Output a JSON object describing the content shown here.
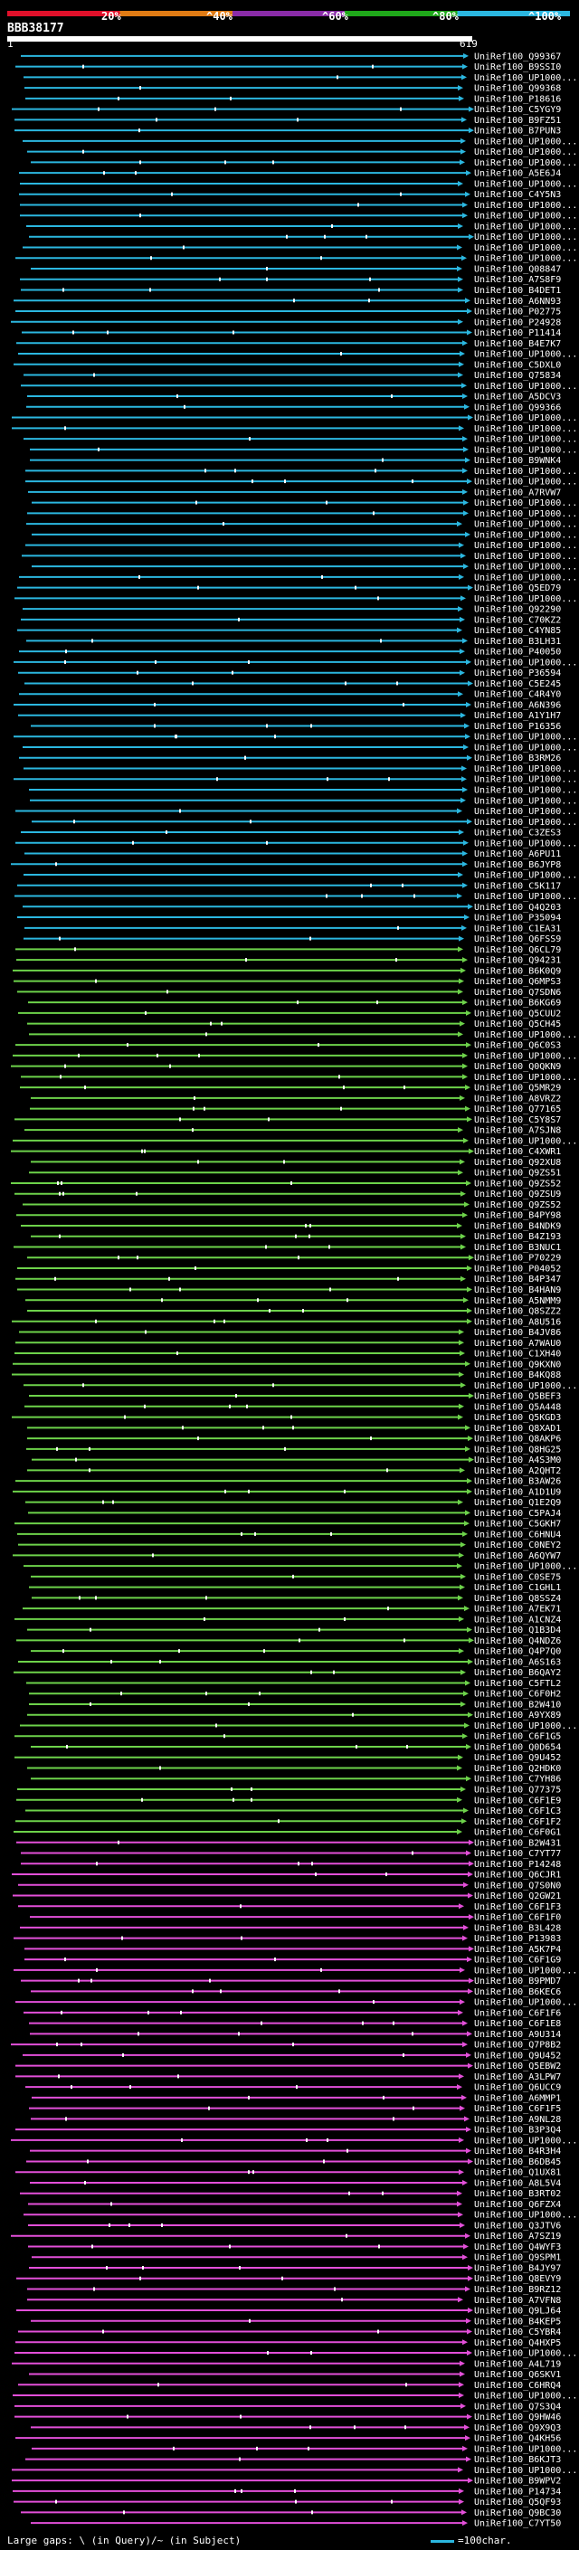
{
  "legend": {
    "labels": [
      "20%",
      "^40%",
      "^60%",
      "^80%",
      "^100%"
    ],
    "colors": [
      "#e0102a",
      "#e07b14",
      "#8a2ca8",
      "#1fa81a",
      "#2bb7e0"
    ]
  },
  "query": {
    "id": "BBB38177",
    "start": "1",
    "end": "619"
  },
  "hit_colors": {
    "cyan": "#2bb7e0",
    "green": "#6dd24a",
    "magenta": "#e34fd9",
    "purple": "#8a2ca8"
  },
  "hits": [
    {
      "label": "UniRef100_Q99367",
      "c": "cyan"
    },
    {
      "label": "UniRef100_B9SSI0",
      "c": "cyan"
    },
    {
      "label": "UniRef100_UP1000...",
      "c": "cyan"
    },
    {
      "label": "UniRef100_Q99368",
      "c": "cyan"
    },
    {
      "label": "UniRef100_P18616",
      "c": "cyan"
    },
    {
      "label": "UniRef100_C5YGY9",
      "c": "cyan"
    },
    {
      "label": "UniRef100_B9FZ51",
      "c": "cyan"
    },
    {
      "label": "UniRef100_B7PUN3",
      "c": "cyan"
    },
    {
      "label": "UniRef100_UP1000...",
      "c": "cyan"
    },
    {
      "label": "UniRef100_UP1000...",
      "c": "cyan"
    },
    {
      "label": "UniRef100_UP1000...",
      "c": "cyan"
    },
    {
      "label": "UniRef100_A5E6J4",
      "c": "cyan"
    },
    {
      "label": "UniRef100_UP1000...",
      "c": "cyan"
    },
    {
      "label": "UniRef100_C4Y5N3",
      "c": "cyan"
    },
    {
      "label": "UniRef100_UP1000...",
      "c": "cyan"
    },
    {
      "label": "UniRef100_UP1000...",
      "c": "cyan"
    },
    {
      "label": "UniRef100_UP1000...",
      "c": "cyan"
    },
    {
      "label": "UniRef100_UP1000...",
      "c": "cyan"
    },
    {
      "label": "UniRef100_UP1000...",
      "c": "cyan"
    },
    {
      "label": "UniRef100_UP1000...",
      "c": "cyan"
    },
    {
      "label": "UniRef100_Q08847",
      "c": "cyan"
    },
    {
      "label": "UniRef100_A7S8F9",
      "c": "cyan"
    },
    {
      "label": "UniRef100_B4DET1",
      "c": "cyan"
    },
    {
      "label": "UniRef100_A6NN93",
      "c": "cyan"
    },
    {
      "label": "UniRef100_P02775",
      "c": "cyan"
    },
    {
      "label": "UniRef100_P24928",
      "c": "cyan"
    },
    {
      "label": "UniRef100_P11414",
      "c": "cyan"
    },
    {
      "label": "UniRef100_B4E7K7",
      "c": "cyan"
    },
    {
      "label": "UniRef100_UP1000...",
      "c": "cyan"
    },
    {
      "label": "UniRef100_C5DXL0",
      "c": "cyan"
    },
    {
      "label": "UniRef100_Q75834",
      "c": "cyan"
    },
    {
      "label": "UniRef100_UP1000...",
      "c": "cyan"
    },
    {
      "label": "UniRef100_A5DCV3",
      "c": "cyan"
    },
    {
      "label": "UniRef100_Q99366",
      "c": "cyan"
    },
    {
      "label": "UniRef100_UP1000...",
      "c": "cyan"
    },
    {
      "label": "UniRef100_UP1000...",
      "c": "cyan"
    },
    {
      "label": "UniRef100_UP1000...",
      "c": "cyan"
    },
    {
      "label": "UniRef100_UP1000...",
      "c": "cyan"
    },
    {
      "label": "UniRef100_B9WNK4",
      "c": "cyan"
    },
    {
      "label": "UniRef100_UP1000...",
      "c": "cyan"
    },
    {
      "label": "UniRef100_UP1000...",
      "c": "cyan"
    },
    {
      "label": "UniRef100_A7RVW7",
      "c": "cyan"
    },
    {
      "label": "UniRef100_UP1000...",
      "c": "cyan"
    },
    {
      "label": "UniRef100_UP1000...",
      "c": "cyan"
    },
    {
      "label": "UniRef100_UP1000...",
      "c": "cyan"
    },
    {
      "label": "UniRef100_UP1000...",
      "c": "cyan"
    },
    {
      "label": "UniRef100_UP1000...",
      "c": "cyan"
    },
    {
      "label": "UniRef100_UP1000...",
      "c": "cyan"
    },
    {
      "label": "UniRef100_UP1000...",
      "c": "cyan"
    },
    {
      "label": "UniRef100_UP1000...",
      "c": "cyan"
    },
    {
      "label": "UniRef100_Q5ED79",
      "c": "cyan"
    },
    {
      "label": "UniRef100_UP1000...",
      "c": "cyan"
    },
    {
      "label": "UniRef100_Q92290",
      "c": "cyan"
    },
    {
      "label": "UniRef100_C70KZ2",
      "c": "cyan"
    },
    {
      "label": "UniRef100_C4YN85",
      "c": "cyan"
    },
    {
      "label": "UniRef100_B3LH31",
      "c": "cyan"
    },
    {
      "label": "UniRef100_P40050",
      "c": "cyan"
    },
    {
      "label": "UniRef100_UP1000...",
      "c": "cyan"
    },
    {
      "label": "UniRef100_P36594",
      "c": "cyan"
    },
    {
      "label": "UniRef100_C5E245",
      "c": "cyan"
    },
    {
      "label": "UniRef100_C4R4Y0",
      "c": "cyan"
    },
    {
      "label": "UniRef100_A6N396",
      "c": "cyan"
    },
    {
      "label": "UniRef100_A1Y1H7",
      "c": "cyan"
    },
    {
      "label": "UniRef100_P16356",
      "c": "cyan"
    },
    {
      "label": "UniRef100_UP1000...",
      "c": "cyan"
    },
    {
      "label": "UniRef100_UP1000...",
      "c": "cyan"
    },
    {
      "label": "UniRef100_B3RM26",
      "c": "cyan"
    },
    {
      "label": "UniRef100_UP1000...",
      "c": "cyan"
    },
    {
      "label": "UniRef100_UP1000...",
      "c": "cyan"
    },
    {
      "label": "UniRef100_UP1000...",
      "c": "cyan"
    },
    {
      "label": "UniRef100_UP1000...",
      "c": "cyan"
    },
    {
      "label": "UniRef100_UP1000...",
      "c": "cyan"
    },
    {
      "label": "UniRef100_UP1000...",
      "c": "cyan"
    },
    {
      "label": "UniRef100_C3ZES3",
      "c": "cyan"
    },
    {
      "label": "UniRef100_UP1000...",
      "c": "cyan"
    },
    {
      "label": "UniRef100_A6PU11",
      "c": "cyan"
    },
    {
      "label": "UniRef100_B6JYP8",
      "c": "cyan"
    },
    {
      "label": "UniRef100_UP1000...",
      "c": "cyan"
    },
    {
      "label": "UniRef100_C5K117",
      "c": "cyan"
    },
    {
      "label": "UniRef100_UP1000...",
      "c": "cyan"
    },
    {
      "label": "UniRef100_Q4Q203",
      "c": "cyan"
    },
    {
      "label": "UniRef100_P35094",
      "c": "cyan"
    },
    {
      "label": "UniRef100_C1EA31",
      "c": "cyan"
    },
    {
      "label": "UniRef100_Q6FSS9",
      "c": "cyan"
    },
    {
      "label": "UniRef100_Q6CL79",
      "c": "green"
    },
    {
      "label": "UniRef100_Q94231",
      "c": "green"
    },
    {
      "label": "UniRef100_B6K0Q9",
      "c": "green"
    },
    {
      "label": "UniRef100_Q6MPS3",
      "c": "green"
    },
    {
      "label": "UniRef100_Q7SDN6",
      "c": "green"
    },
    {
      "label": "UniRef100_B6KG69",
      "c": "green"
    },
    {
      "label": "UniRef100_Q5CUU2",
      "c": "green"
    },
    {
      "label": "UniRef100_Q5CH45",
      "c": "green"
    },
    {
      "label": "UniRef100_UP1000...",
      "c": "green"
    },
    {
      "label": "UniRef100_Q6C0S3",
      "c": "green"
    },
    {
      "label": "UniRef100_UP1000...",
      "c": "green"
    },
    {
      "label": "UniRef100_Q0QKN9",
      "c": "green"
    },
    {
      "label": "UniRef100_UP1000...",
      "c": "green"
    },
    {
      "label": "UniRef100_Q5MR29",
      "c": "green"
    },
    {
      "label": "UniRef100_A8VRZ2",
      "c": "green"
    },
    {
      "label": "UniRef100_Q77165",
      "c": "green"
    },
    {
      "label": "UniRef100_C5Y8S7",
      "c": "green"
    },
    {
      "label": "UniRef100_A7SJN8",
      "c": "green"
    },
    {
      "label": "UniRef100_UP1000...",
      "c": "green"
    },
    {
      "label": "UniRef100_C4XWR1",
      "c": "green"
    },
    {
      "label": "UniRef100_Q92XU8",
      "c": "green"
    },
    {
      "label": "UniRef100_Q9ZS51",
      "c": "green"
    },
    {
      "label": "UniRef100_Q9ZS52",
      "c": "green"
    },
    {
      "label": "UniRef100_Q9ZSU9",
      "c": "green"
    },
    {
      "label": "UniRef100_Q9ZS52",
      "c": "green"
    },
    {
      "label": "UniRef100_B4PY98",
      "c": "green"
    },
    {
      "label": "UniRef100_B4NDK9",
      "c": "green"
    },
    {
      "label": "UniRef100_B4Z193",
      "c": "green"
    },
    {
      "label": "UniRef100_B3NUC1",
      "c": "green"
    },
    {
      "label": "UniRef100_P70229",
      "c": "green"
    },
    {
      "label": "UniRef100_P04052",
      "c": "green"
    },
    {
      "label": "UniRef100_B4P347",
      "c": "green"
    },
    {
      "label": "UniRef100_B4HAN9",
      "c": "green"
    },
    {
      "label": "UniRef100_A5NMM9",
      "c": "green"
    },
    {
      "label": "UniRef100_Q8SZZ2",
      "c": "green"
    },
    {
      "label": "UniRef100_A8U516",
      "c": "green"
    },
    {
      "label": "UniRef100_B4JV86",
      "c": "green"
    },
    {
      "label": "UniRef100_A7WAU0",
      "c": "green"
    },
    {
      "label": "UniRef100_C1XH40",
      "c": "green"
    },
    {
      "label": "UniRef100_Q9KXN0",
      "c": "green"
    },
    {
      "label": "UniRef100_B4KQ88",
      "c": "green"
    },
    {
      "label": "UniRef100_UP1000...",
      "c": "green"
    },
    {
      "label": "UniRef100_Q5BEF3",
      "c": "green"
    },
    {
      "label": "UniRef100_Q5A448",
      "c": "green"
    },
    {
      "label": "UniRef100_Q5KGD3",
      "c": "green"
    },
    {
      "label": "UniRef100_Q8XAD1",
      "c": "green"
    },
    {
      "label": "UniRef100_Q8AKP6",
      "c": "green"
    },
    {
      "label": "UniRef100_Q8HG25",
      "c": "green"
    },
    {
      "label": "UniRef100_A4S3M0",
      "c": "green"
    },
    {
      "label": "UniRef100_A2QHT2",
      "c": "green"
    },
    {
      "label": "UniRef100_B3AW26",
      "c": "green"
    },
    {
      "label": "UniRef100_A1D1U9",
      "c": "green"
    },
    {
      "label": "UniRef100_Q1E2Q9",
      "c": "green"
    },
    {
      "label": "UniRef100_C5PAJ4",
      "c": "green"
    },
    {
      "label": "UniRef100_C5GKH7",
      "c": "green"
    },
    {
      "label": "UniRef100_C6HNU4",
      "c": "green"
    },
    {
      "label": "UniRef100_C0NEY2",
      "c": "green"
    },
    {
      "label": "UniRef100_A6QYW7",
      "c": "green"
    },
    {
      "label": "UniRef100_UP1000...",
      "c": "green"
    },
    {
      "label": "UniRef100_C0SE75",
      "c": "green"
    },
    {
      "label": "UniRef100_C1GHL1",
      "c": "green"
    },
    {
      "label": "UniRef100_Q8SSZ4",
      "c": "green"
    },
    {
      "label": "UniRef100_A7EK71",
      "c": "green"
    },
    {
      "label": "UniRef100_A1CNZ4",
      "c": "green"
    },
    {
      "label": "UniRef100_Q1B3D4",
      "c": "green"
    },
    {
      "label": "UniRef100_Q4NDZ6",
      "c": "green"
    },
    {
      "label": "UniRef100_Q4P7Q0",
      "c": "green"
    },
    {
      "label": "UniRef100_A6S163",
      "c": "green"
    },
    {
      "label": "UniRef100_B6QAY2",
      "c": "green"
    },
    {
      "label": "UniRef100_C5FTL2",
      "c": "green"
    },
    {
      "label": "UniRef100_C6F0H2",
      "c": "green"
    },
    {
      "label": "UniRef100_B2W410",
      "c": "green"
    },
    {
      "label": "UniRef100_A9YX89",
      "c": "green"
    },
    {
      "label": "UniRef100_UP1000...",
      "c": "green"
    },
    {
      "label": "UniRef100_C6F1G5",
      "c": "green"
    },
    {
      "label": "UniRef100_Q0D654",
      "c": "green"
    },
    {
      "label": "UniRef100_Q9U452",
      "c": "green"
    },
    {
      "label": "UniRef100_Q2HDK0",
      "c": "green"
    },
    {
      "label": "UniRef100_C7YH86",
      "c": "green"
    },
    {
      "label": "UniRef100_Q77375",
      "c": "green"
    },
    {
      "label": "UniRef100_C6F1E9",
      "c": "green"
    },
    {
      "label": "UniRef100_C6F1C3",
      "c": "green"
    },
    {
      "label": "UniRef100_C6F1F2",
      "c": "green"
    },
    {
      "label": "UniRef100_C6F0G1",
      "c": "green"
    },
    {
      "label": "UniRef100_B2W431",
      "c": "magenta"
    },
    {
      "label": "UniRef100_C7YT77",
      "c": "magenta"
    },
    {
      "label": "UniRef100_P14248",
      "c": "magenta"
    },
    {
      "label": "UniRef100_Q6CJR1",
      "c": "magenta"
    },
    {
      "label": "UniRef100_Q7S0N0",
      "c": "magenta"
    },
    {
      "label": "UniRef100_Q2GW21",
      "c": "magenta"
    },
    {
      "label": "UniRef100_C6F1F3",
      "c": "magenta"
    },
    {
      "label": "UniRef100_C6F1F0",
      "c": "magenta"
    },
    {
      "label": "UniRef100_B3L428",
      "c": "magenta"
    },
    {
      "label": "UniRef100_P13983",
      "c": "magenta"
    },
    {
      "label": "UniRef100_A5K7P4",
      "c": "magenta"
    },
    {
      "label": "UniRef100_C6F1G9",
      "c": "magenta"
    },
    {
      "label": "UniRef100_UP1000...",
      "c": "magenta"
    },
    {
      "label": "UniRef100_B9PMD7",
      "c": "magenta"
    },
    {
      "label": "UniRef100_B6KEC6",
      "c": "magenta"
    },
    {
      "label": "UniRef100_UP1000...",
      "c": "magenta"
    },
    {
      "label": "UniRef100_C6F1F6",
      "c": "magenta"
    },
    {
      "label": "UniRef100_C6F1E8",
      "c": "magenta"
    },
    {
      "label": "UniRef100_A9U314",
      "c": "magenta"
    },
    {
      "label": "UniRef100_Q7P8B2",
      "c": "magenta"
    },
    {
      "label": "UniRef100_Q9U452",
      "c": "magenta"
    },
    {
      "label": "UniRef100_Q5EBW2",
      "c": "magenta"
    },
    {
      "label": "UniRef100_A3LPW7",
      "c": "magenta"
    },
    {
      "label": "UniRef100_Q6UCC9",
      "c": "magenta"
    },
    {
      "label": "UniRef100_A6MMP1",
      "c": "magenta"
    },
    {
      "label": "UniRef100_C6F1F5",
      "c": "magenta"
    },
    {
      "label": "UniRef100_A9NL28",
      "c": "magenta"
    },
    {
      "label": "UniRef100_B3P3Q4",
      "c": "magenta"
    },
    {
      "label": "UniRef100_UP1000...",
      "c": "magenta"
    },
    {
      "label": "UniRef100_B4R3H4",
      "c": "magenta"
    },
    {
      "label": "UniRef100_B6DB45",
      "c": "magenta"
    },
    {
      "label": "UniRef100_Q1UX81",
      "c": "magenta"
    },
    {
      "label": "UniRef100_A8L5V4",
      "c": "magenta"
    },
    {
      "label": "UniRef100_B3RT02",
      "c": "magenta"
    },
    {
      "label": "UniRef100_Q6FZX4",
      "c": "magenta"
    },
    {
      "label": "UniRef100_UP1000...",
      "c": "magenta"
    },
    {
      "label": "UniRef100_Q3JTV6",
      "c": "magenta"
    },
    {
      "label": "UniRef100_A7SZ19",
      "c": "magenta"
    },
    {
      "label": "UniRef100_Q4WYF3",
      "c": "magenta"
    },
    {
      "label": "UniRef100_Q9SPM1",
      "c": "magenta"
    },
    {
      "label": "UniRef100_B4JY97",
      "c": "magenta"
    },
    {
      "label": "UniRef100_Q8EVY9",
      "c": "magenta"
    },
    {
      "label": "UniRef100_B9RZ12",
      "c": "magenta"
    },
    {
      "label": "UniRef100_A7VFN8",
      "c": "magenta"
    },
    {
      "label": "UniRef100_Q9LJ64",
      "c": "magenta"
    },
    {
      "label": "UniRef100_B4KEP5",
      "c": "magenta"
    },
    {
      "label": "UniRef100_C5YBR4",
      "c": "magenta"
    },
    {
      "label": "UniRef100_Q4HXP5",
      "c": "magenta"
    },
    {
      "label": "UniRef100_UP1000...",
      "c": "magenta"
    },
    {
      "label": "UniRef100_A4L719",
      "c": "magenta"
    },
    {
      "label": "UniRef100_Q6SKV1",
      "c": "magenta"
    },
    {
      "label": "UniRef100_C6HRQ4",
      "c": "magenta"
    },
    {
      "label": "UniRef100_UP1000...",
      "c": "magenta"
    },
    {
      "label": "UniRef100_Q7S3Q4",
      "c": "magenta"
    },
    {
      "label": "UniRef100_Q9HW46",
      "c": "magenta"
    },
    {
      "label": "UniRef100_Q9X9Q3",
      "c": "magenta"
    },
    {
      "label": "UniRef100_Q4KH56",
      "c": "magenta"
    },
    {
      "label": "UniRef100_UP1000...",
      "c": "magenta"
    },
    {
      "label": "UniRef100_B6KJT3",
      "c": "magenta"
    },
    {
      "label": "UniRef100_UP1000...",
      "c": "magenta"
    },
    {
      "label": "UniRef100_B9WPV2",
      "c": "magenta"
    },
    {
      "label": "UniRef100_P14734",
      "c": "magenta"
    },
    {
      "label": "UniRef100_Q5QF93",
      "c": "magenta"
    },
    {
      "label": "UniRef100_Q9BC30",
      "c": "magenta"
    },
    {
      "label": "UniRef100_C7YT50",
      "c": "magenta"
    }
  ],
  "footer": {
    "text": "Large gaps: \\ (in Query)/~ (in Subject)",
    "key": "=100char."
  }
}
